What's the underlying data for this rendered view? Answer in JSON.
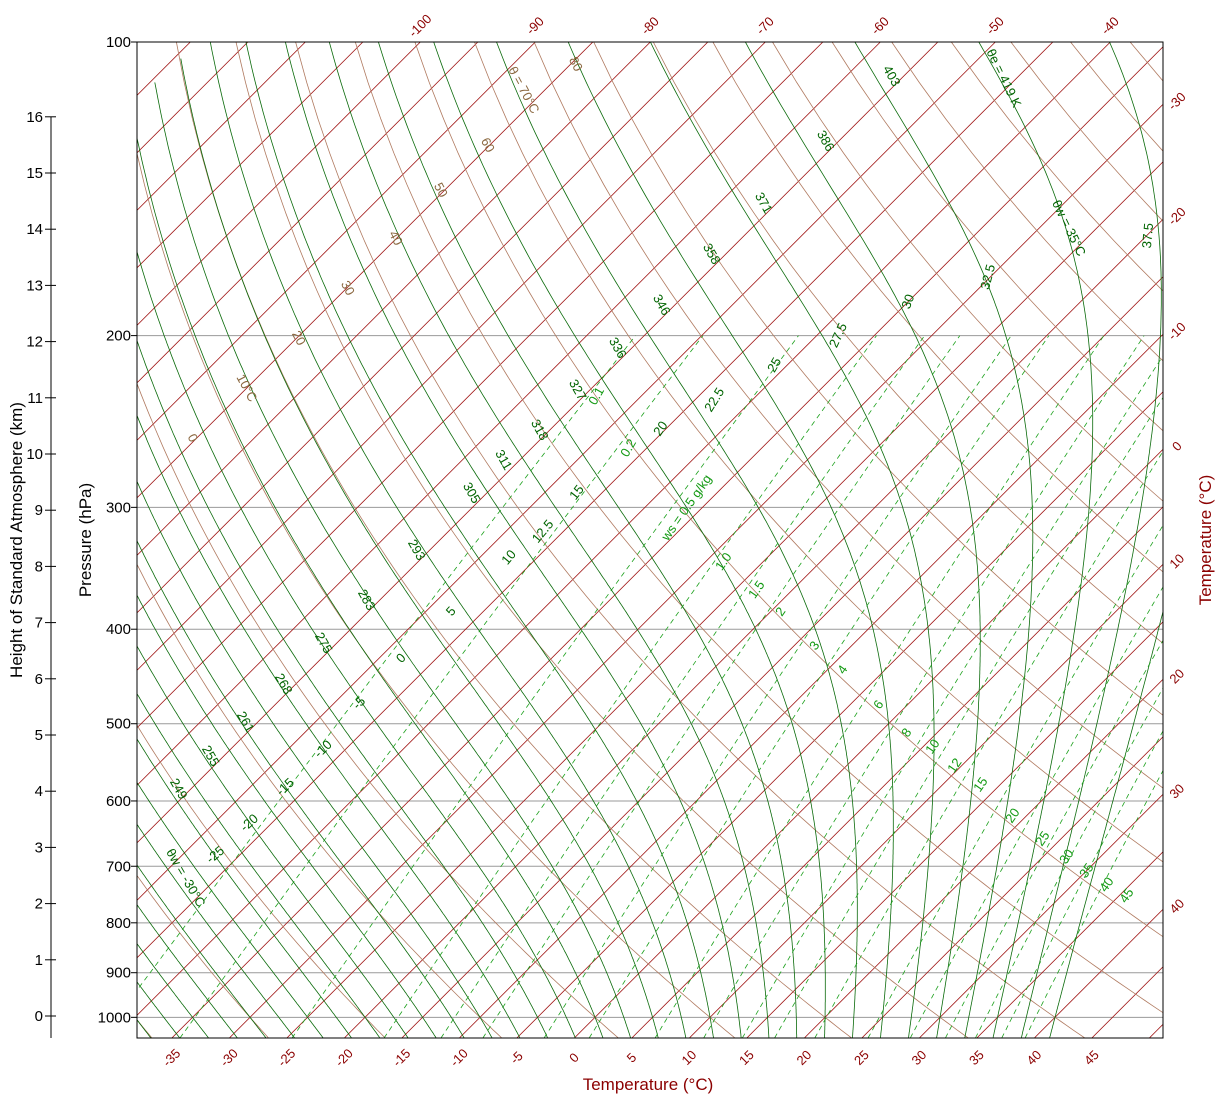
{
  "chart_data": {
    "type": "line",
    "subtype": "skew-T log-P thermodynamic diagram",
    "xlabel_bottom": "Temperature (°C)",
    "ylabel_right": "Temperature (°C)",
    "ylabel_pressure": "Pressure (hPa)",
    "ylabel_height": "Height of Standard Atmosphere (km)",
    "pressure_range_hpa": [
      100,
      1050
    ],
    "log_pressure": true,
    "grid": true,
    "pressure_ticks": [
      100,
      200,
      300,
      400,
      500,
      600,
      700,
      800,
      900,
      1000
    ],
    "height_ticks_km": [
      0,
      1,
      2,
      3,
      4,
      5,
      6,
      7,
      8,
      9,
      10,
      11,
      12,
      13,
      14,
      15,
      16
    ],
    "bottom_temperature_ticks": [
      -35,
      -30,
      -25,
      -20,
      -15,
      -10,
      -5,
      0,
      5,
      10,
      15,
      20,
      25,
      30,
      35,
      40,
      45
    ],
    "top_temperature_ticks": [
      -100,
      -90,
      -80,
      -70,
      -60,
      -50,
      -40
    ],
    "right_temperature_ticks": [
      -30,
      -20,
      -10,
      0,
      10,
      20,
      30,
      40
    ],
    "dry_adiabat_labels": [
      {
        "text": "θ = 70°C",
        "value": 70
      },
      {
        "text": "80",
        "value": 80
      },
      {
        "text": "60",
        "value": 60
      },
      {
        "text": "50",
        "value": 50
      },
      {
        "text": "40",
        "value": 40
      },
      {
        "text": "30",
        "value": 30
      },
      {
        "text": "20",
        "value": 20
      },
      {
        "text": "10°C",
        "value": 10
      },
      {
        "text": "0",
        "value": 0
      }
    ],
    "equivalent_potential_temperature_labels": [
      {
        "text": "θe = 419 K",
        "value": 419
      },
      {
        "text": "403",
        "value": 403
      },
      {
        "text": "386",
        "value": 386
      },
      {
        "text": "371",
        "value": 371
      },
      {
        "text": "358",
        "value": 358
      },
      {
        "text": "346",
        "value": 346
      },
      {
        "text": "336",
        "value": 336
      },
      {
        "text": "327",
        "value": 327
      },
      {
        "text": "318",
        "value": 318
      },
      {
        "text": "311",
        "value": 311
      },
      {
        "text": "305",
        "value": 305
      },
      {
        "text": "293",
        "value": 293
      },
      {
        "text": "283",
        "value": 283
      },
      {
        "text": "275",
        "value": 275
      },
      {
        "text": "268",
        "value": 268
      },
      {
        "text": "261",
        "value": 261
      },
      {
        "text": "255",
        "value": 255
      },
      {
        "text": "249",
        "value": 249
      }
    ],
    "wet_bulb_potential_temperature_labels": [
      {
        "text": "θw = 35°C",
        "value": 35
      },
      {
        "text": "37.5",
        "value": 37.5
      },
      {
        "text": "32.5",
        "value": 32.5
      },
      {
        "text": "30",
        "value": 30
      },
      {
        "text": "27.5",
        "value": 27.5
      },
      {
        "text": "25",
        "value": 25
      },
      {
        "text": "22.5",
        "value": 22.5
      },
      {
        "text": "20",
        "value": 20
      },
      {
        "text": "15",
        "value": 15
      },
      {
        "text": "12.5",
        "value": 12.5
      },
      {
        "text": "10",
        "value": 10
      },
      {
        "text": "5",
        "value": 5
      },
      {
        "text": "0",
        "value": 0
      },
      {
        "text": "-5",
        "value": -5
      },
      {
        "text": "-10",
        "value": -10
      },
      {
        "text": "-15",
        "value": -15
      },
      {
        "text": "-20",
        "value": -20
      },
      {
        "text": "-25",
        "value": -25
      },
      {
        "text": "θw = -30°C",
        "value": -30
      }
    ],
    "saturation_mixing_ratio_labels": [
      {
        "text": "0.1",
        "value": 0.1
      },
      {
        "text": "0.2",
        "value": 0.2
      },
      {
        "text": "ws = 0.5 g/kg",
        "value": 0.5
      },
      {
        "text": "1.0",
        "value": 1.0
      },
      {
        "text": "1.5",
        "value": 1.5
      },
      {
        "text": "2",
        "value": 2
      },
      {
        "text": "3",
        "value": 3
      },
      {
        "text": "4",
        "value": 4
      },
      {
        "text": "6",
        "value": 6
      },
      {
        "text": "8",
        "value": 8
      },
      {
        "text": "10",
        "value": 10
      },
      {
        "text": "12",
        "value": 12
      },
      {
        "text": "15",
        "value": 15
      },
      {
        "text": "20",
        "value": 20
      },
      {
        "text": "25",
        "value": 25
      },
      {
        "text": "30",
        "value": 30
      },
      {
        "text": "35",
        "value": 35
      },
      {
        "text": "40",
        "value": 40
      },
      {
        "text": "45",
        "value": 45
      }
    ],
    "colors": {
      "isotherm": "#a01515",
      "dry_adiabat": "#b07a60",
      "moist_adiabat": "#0a6a0a",
      "mixing_ratio": "#1ca01c",
      "isobar": "#9a9a9a",
      "label_green": "#006400",
      "label_brown": "#8b6840",
      "label_red": "#8b0000"
    }
  }
}
